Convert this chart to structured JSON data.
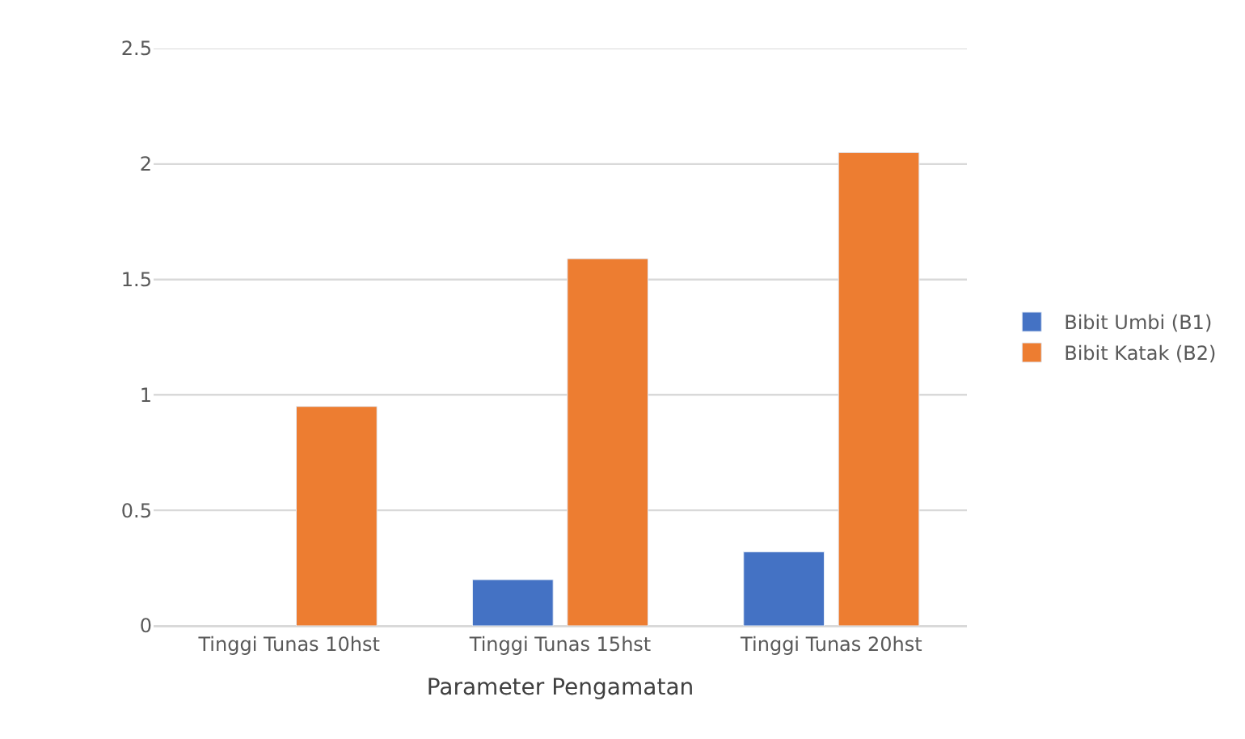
{
  "chart_data": {
    "type": "bar",
    "xlabel": "Parameter Pengamatan",
    "categories": [
      "Tinggi Tunas 10hst",
      "Tinggi Tunas 15hst",
      "Tinggi Tunas 20hst"
    ],
    "series": [
      {
        "name": "Bibit Umbi (B1)",
        "color": "#4472c4",
        "values": [
          null,
          0.2,
          0.32
        ]
      },
      {
        "name": "Bibit Katak (B2)",
        "color": "#ed7d31",
        "values": [
          0.95,
          1.59,
          2.05
        ]
      }
    ],
    "ylim": [
      0,
      2.5
    ],
    "yticks": [
      0,
      0.5,
      1,
      1.5,
      2,
      2.5
    ],
    "grid": "y",
    "legend": "right"
  }
}
